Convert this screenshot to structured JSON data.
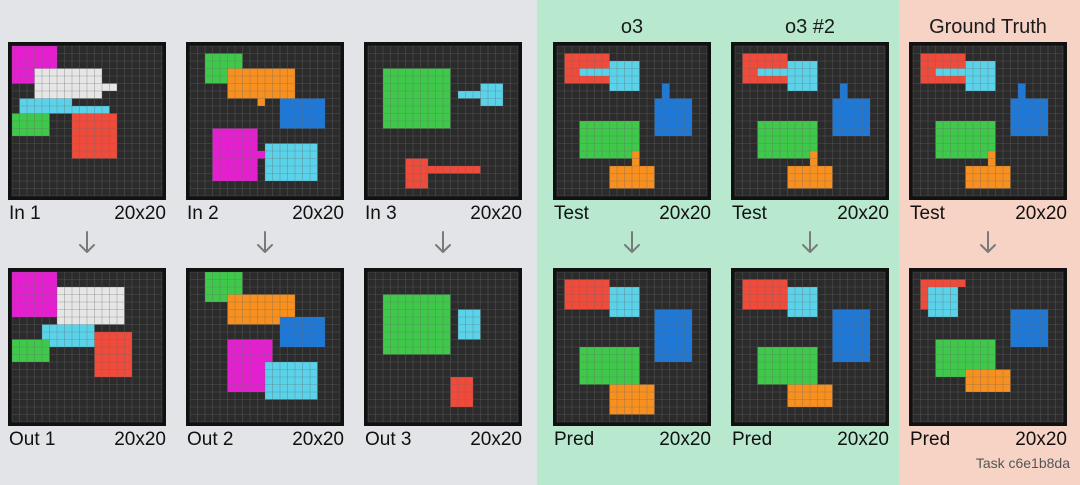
{
  "columns": {
    "o3": "o3",
    "o3_2": "o3 #2",
    "gt": "Ground Truth"
  },
  "task": "Task c6e1b8da",
  "size": "20x20",
  "colors": {
    "grid_bg": "#2b2b2b",
    "grid_line": "#6a6a6a",
    "magenta": "#e51fd0",
    "white": "#e6e6e6",
    "cyan": "#5ad3ea",
    "green": "#3ec94a",
    "red": "#f04a3a",
    "orange": "#f7901e",
    "blue": "#1d78d8"
  },
  "panels": [
    {
      "label": "In 1",
      "rects": [
        [
          0,
          0,
          6,
          5,
          "magenta"
        ],
        [
          3,
          3,
          9,
          4,
          "white"
        ],
        [
          12,
          5,
          2,
          1,
          "white"
        ],
        [
          1,
          7,
          7,
          2,
          "cyan"
        ],
        [
          8,
          8,
          5,
          1,
          "cyan"
        ],
        [
          0,
          9,
          5,
          3,
          "green"
        ],
        [
          8,
          9,
          6,
          6,
          "red"
        ]
      ]
    },
    {
      "label": "Out 1",
      "rects": [
        [
          0,
          0,
          6,
          6,
          "magenta"
        ],
        [
          6,
          2,
          9,
          5,
          "white"
        ],
        [
          4,
          7,
          7,
          3,
          "cyan"
        ],
        [
          0,
          9,
          5,
          3,
          "green"
        ],
        [
          11,
          8,
          5,
          6,
          "red"
        ]
      ]
    },
    {
      "label": "In 2",
      "rects": [
        [
          2,
          1,
          5,
          4,
          "green"
        ],
        [
          5,
          3,
          9,
          4,
          "orange"
        ],
        [
          9,
          6,
          1,
          2,
          "orange"
        ],
        [
          12,
          7,
          6,
          4,
          "blue"
        ],
        [
          3,
          11,
          6,
          7,
          "magenta"
        ],
        [
          9,
          14,
          2,
          1,
          "magenta"
        ],
        [
          10,
          13,
          7,
          5,
          "cyan"
        ]
      ]
    },
    {
      "label": "Out 2",
      "rects": [
        [
          2,
          0,
          5,
          4,
          "green"
        ],
        [
          5,
          3,
          9,
          4,
          "orange"
        ],
        [
          12,
          6,
          6,
          4,
          "blue"
        ],
        [
          5,
          9,
          6,
          7,
          "magenta"
        ],
        [
          10,
          12,
          7,
          5,
          "cyan"
        ]
      ]
    },
    {
      "label": "In 3",
      "rects": [
        [
          2,
          3,
          9,
          8,
          "green"
        ],
        [
          12,
          6,
          6,
          1,
          "white"
        ],
        [
          12,
          6,
          6,
          1,
          "cyan"
        ],
        [
          15,
          5,
          3,
          3,
          "cyan"
        ],
        [
          5,
          15,
          3,
          4,
          "red"
        ],
        [
          8,
          16,
          7,
          1,
          "red"
        ]
      ]
    },
    {
      "label": "Out 3",
      "rects": [
        [
          2,
          3,
          9,
          8,
          "green"
        ],
        [
          12,
          5,
          3,
          4,
          "cyan"
        ],
        [
          11,
          14,
          3,
          4,
          "red"
        ]
      ]
    },
    {
      "label": "Test",
      "rects": [
        [
          1,
          1,
          6,
          4,
          "red"
        ],
        [
          3,
          3,
          5,
          1,
          "cyan"
        ],
        [
          7,
          2,
          4,
          4,
          "cyan"
        ],
        [
          14,
          5,
          1,
          2,
          "blue"
        ],
        [
          13,
          7,
          5,
          5,
          "blue"
        ],
        [
          3,
          10,
          8,
          5,
          "green"
        ],
        [
          10,
          14,
          1,
          2,
          "orange"
        ],
        [
          7,
          16,
          6,
          3,
          "orange"
        ]
      ]
    },
    {
      "label": "Pred",
      "rects": [
        [
          1,
          1,
          6,
          4,
          "red"
        ],
        [
          7,
          2,
          4,
          4,
          "cyan"
        ],
        [
          13,
          5,
          5,
          7,
          "blue"
        ],
        [
          3,
          10,
          8,
          5,
          "green"
        ],
        [
          7,
          15,
          6,
          4,
          "orange"
        ]
      ]
    },
    {
      "label": "Test",
      "rects": [
        [
          1,
          1,
          6,
          4,
          "red"
        ],
        [
          3,
          3,
          5,
          1,
          "cyan"
        ],
        [
          7,
          2,
          4,
          4,
          "cyan"
        ],
        [
          14,
          5,
          1,
          2,
          "blue"
        ],
        [
          13,
          7,
          5,
          5,
          "blue"
        ],
        [
          3,
          10,
          8,
          5,
          "green"
        ],
        [
          10,
          14,
          1,
          2,
          "orange"
        ],
        [
          7,
          16,
          6,
          3,
          "orange"
        ]
      ]
    },
    {
      "label": "Pred",
      "rects": [
        [
          1,
          1,
          6,
          4,
          "red"
        ],
        [
          7,
          2,
          4,
          4,
          "cyan"
        ],
        [
          13,
          5,
          5,
          7,
          "blue"
        ],
        [
          3,
          10,
          8,
          5,
          "green"
        ],
        [
          7,
          15,
          6,
          3,
          "orange"
        ]
      ]
    },
    {
      "label": "Test",
      "rects": [
        [
          1,
          1,
          6,
          4,
          "red"
        ],
        [
          3,
          3,
          5,
          1,
          "cyan"
        ],
        [
          7,
          2,
          4,
          4,
          "cyan"
        ],
        [
          14,
          5,
          1,
          2,
          "blue"
        ],
        [
          13,
          7,
          5,
          5,
          "blue"
        ],
        [
          3,
          10,
          8,
          5,
          "green"
        ],
        [
          10,
          14,
          1,
          2,
          "orange"
        ],
        [
          7,
          16,
          6,
          3,
          "orange"
        ]
      ]
    },
    {
      "label": "Pred",
      "rects": [
        [
          1,
          1,
          6,
          1,
          "red"
        ],
        [
          1,
          2,
          2,
          3,
          "red"
        ],
        [
          2,
          2,
          4,
          4,
          "cyan"
        ],
        [
          13,
          5,
          5,
          5,
          "blue"
        ],
        [
          3,
          9,
          8,
          5,
          "green"
        ],
        [
          7,
          13,
          6,
          3,
          "orange"
        ]
      ]
    }
  ]
}
